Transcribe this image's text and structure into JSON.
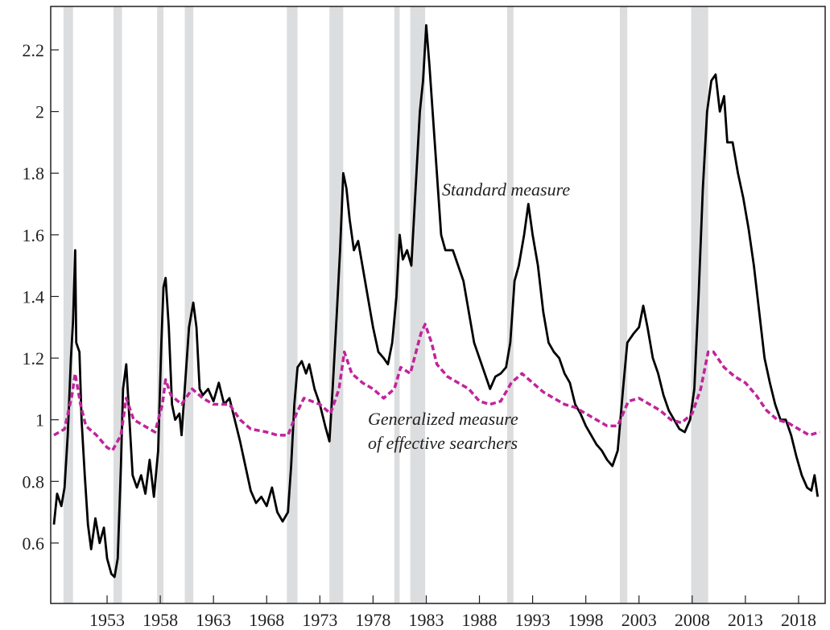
{
  "chart_data": {
    "type": "line",
    "annotations": [
      "Standard measure",
      "Generalized measure",
      "of effective searchers"
    ],
    "xlim": [
      1947.7,
      2020.5
    ],
    "xticks": [
      1953,
      1958,
      1963,
      1968,
      1973,
      1978,
      1983,
      1988,
      1993,
      1998,
      2003,
      2008,
      2013,
      2018
    ],
    "ylim": [
      0.404,
      2.341
    ],
    "yticks": [
      0.6,
      0.8,
      1,
      1.2,
      1.4,
      1.6,
      1.8,
      2,
      2.2
    ],
    "recessions": [
      [
        1948.9,
        1949.8
      ],
      [
        1953.6,
        1954.4
      ],
      [
        1957.7,
        1958.3
      ],
      [
        1960.3,
        1961.1
      ],
      [
        1969.9,
        1970.9
      ],
      [
        1973.9,
        1975.2
      ],
      [
        1980.0,
        1980.5
      ],
      [
        1981.5,
        1982.9
      ],
      [
        1990.6,
        1991.2
      ],
      [
        2001.2,
        2001.9
      ],
      [
        2007.9,
        2009.5
      ]
    ],
    "recession_color": "#dcdddf",
    "series": [
      {
        "color": "#000000",
        "dash": false,
        "x": [
          1948.0,
          1948.3,
          1948.7,
          1949.0,
          1949.3,
          1949.6,
          1949.8,
          1950.0,
          1950.1,
          1950.4,
          1950.6,
          1950.9,
          1951.2,
          1951.5,
          1951.9,
          1952.3,
          1952.7,
          1953.0,
          1953.4,
          1953.7,
          1954.0,
          1954.3,
          1954.5,
          1954.8,
          1955.1,
          1955.4,
          1955.8,
          1956.2,
          1956.6,
          1957.0,
          1957.4,
          1957.8,
          1958.1,
          1958.3,
          1958.5,
          1958.8,
          1959.1,
          1959.4,
          1959.8,
          1960.0,
          1960.3,
          1960.7,
          1961.1,
          1961.4,
          1961.7,
          1962.0,
          1962.5,
          1963.0,
          1963.5,
          1964.0,
          1964.5,
          1965.0,
          1965.5,
          1966.0,
          1966.5,
          1967.0,
          1967.5,
          1968.0,
          1968.5,
          1969.0,
          1969.5,
          1970.0,
          1970.3,
          1970.6,
          1970.9,
          1971.3,
          1971.7,
          1972.0,
          1972.5,
          1973.0,
          1973.5,
          1973.9,
          1974.2,
          1974.6,
          1974.9,
          1975.2,
          1975.5,
          1975.8,
          1976.2,
          1976.6,
          1977.0,
          1977.5,
          1978.0,
          1978.5,
          1979.0,
          1979.4,
          1979.8,
          1980.2,
          1980.5,
          1980.8,
          1981.2,
          1981.6,
          1982.0,
          1982.4,
          1982.7,
          1983.0,
          1983.3,
          1983.6,
          1984.0,
          1984.4,
          1984.8,
          1985.5,
          1986.0,
          1986.5,
          1987.0,
          1987.5,
          1988.0,
          1988.5,
          1989.0,
          1989.5,
          1990.0,
          1990.5,
          1990.9,
          1991.3,
          1991.7,
          1992.2,
          1992.6,
          1993.0,
          1993.5,
          1994.0,
          1994.5,
          1995.0,
          1995.5,
          1996.0,
          1996.5,
          1997.0,
          1997.5,
          1998.0,
          1998.5,
          1999.0,
          1999.5,
          2000.0,
          2000.5,
          2001.0,
          2001.5,
          2001.9,
          2002.5,
          2003.0,
          2003.4,
          2003.8,
          2004.3,
          2004.8,
          2005.3,
          2005.8,
          2006.3,
          2006.8,
          2007.3,
          2007.8,
          2008.2,
          2008.6,
          2009.0,
          2009.4,
          2009.8,
          2010.2,
          2010.6,
          2011.0,
          2011.3,
          2011.8,
          2012.3,
          2012.8,
          2013.3,
          2013.8,
          2014.3,
          2014.8,
          2015.3,
          2015.8,
          2016.3,
          2016.8,
          2017.3,
          2017.8,
          2018.3,
          2018.8,
          2019.2,
          2019.5,
          2019.8
        ],
        "values": [
          0.66,
          0.76,
          0.72,
          0.78,
          0.95,
          1.2,
          1.32,
          1.55,
          1.25,
          1.22,
          1.0,
          0.82,
          0.66,
          0.58,
          0.68,
          0.6,
          0.65,
          0.55,
          0.5,
          0.49,
          0.55,
          0.85,
          1.1,
          1.18,
          1.0,
          0.82,
          0.78,
          0.82,
          0.76,
          0.87,
          0.75,
          0.9,
          1.25,
          1.43,
          1.46,
          1.3,
          1.05,
          1.0,
          1.02,
          0.95,
          1.1,
          1.3,
          1.38,
          1.3,
          1.1,
          1.08,
          1.1,
          1.06,
          1.12,
          1.05,
          1.07,
          1.0,
          0.93,
          0.85,
          0.77,
          0.73,
          0.75,
          0.72,
          0.78,
          0.7,
          0.67,
          0.7,
          0.85,
          1.05,
          1.17,
          1.19,
          1.15,
          1.18,
          1.1,
          1.05,
          0.98,
          0.93,
          1.1,
          1.35,
          1.55,
          1.8,
          1.75,
          1.65,
          1.55,
          1.58,
          1.5,
          1.4,
          1.3,
          1.22,
          1.2,
          1.18,
          1.25,
          1.4,
          1.6,
          1.52,
          1.55,
          1.5,
          1.75,
          2.0,
          2.1,
          2.28,
          2.15,
          2.0,
          1.8,
          1.6,
          1.55,
          1.55,
          1.5,
          1.45,
          1.35,
          1.25,
          1.2,
          1.15,
          1.1,
          1.14,
          1.15,
          1.17,
          1.25,
          1.45,
          1.5,
          1.6,
          1.7,
          1.6,
          1.5,
          1.35,
          1.25,
          1.22,
          1.2,
          1.15,
          1.12,
          1.05,
          1.02,
          0.98,
          0.95,
          0.92,
          0.9,
          0.87,
          0.85,
          0.9,
          1.1,
          1.25,
          1.28,
          1.3,
          1.37,
          1.3,
          1.2,
          1.15,
          1.08,
          1.03,
          1.0,
          0.97,
          0.96,
          1.0,
          1.1,
          1.4,
          1.75,
          2.0,
          2.1,
          2.12,
          2.0,
          2.05,
          1.9,
          1.9,
          1.8,
          1.72,
          1.62,
          1.5,
          1.35,
          1.2,
          1.12,
          1.05,
          1.0,
          1.0,
          0.95,
          0.88,
          0.82,
          0.78,
          0.77,
          0.82,
          0.75
        ]
      },
      {
        "color": "#c0249a",
        "dash": true,
        "x": [
          1948.0,
          1949.0,
          1949.7,
          1950.0,
          1950.5,
          1951.0,
          1952.0,
          1953.0,
          1953.5,
          1954.3,
          1954.8,
          1955.5,
          1956.5,
          1957.5,
          1958.2,
          1958.5,
          1959.0,
          1960.0,
          1961.0,
          1962.0,
          1963.0,
          1964.5,
          1965.5,
          1966.5,
          1968.0,
          1969.0,
          1970.0,
          1970.8,
          1971.5,
          1973.0,
          1974.0,
          1974.8,
          1975.3,
          1976.0,
          1977.0,
          1978.0,
          1979.0,
          1980.0,
          1980.6,
          1981.5,
          1982.5,
          1982.9,
          1983.5,
          1984.0,
          1985.0,
          1986.0,
          1987.0,
          1988.0,
          1989.0,
          1990.0,
          1991.0,
          1992.0,
          1993.0,
          1994.0,
          1995.0,
          1996.0,
          1997.0,
          1998.0,
          1999.0,
          2000.0,
          2001.0,
          2002.0,
          2003.0,
          2004.0,
          2005.0,
          2006.0,
          2007.0,
          2008.0,
          2008.8,
          2009.5,
          2010.0,
          2011.0,
          2012.0,
          2013.0,
          2014.0,
          2015.0,
          2016.0,
          2017.0,
          2018.0,
          2019.0,
          2020.0
        ],
        "values": [
          0.95,
          0.97,
          1.08,
          1.15,
          1.05,
          0.98,
          0.95,
          0.91,
          0.9,
          0.95,
          1.07,
          1.0,
          0.98,
          0.96,
          1.05,
          1.13,
          1.08,
          1.05,
          1.1,
          1.07,
          1.05,
          1.05,
          1.0,
          0.97,
          0.96,
          0.95,
          0.95,
          1.02,
          1.07,
          1.05,
          1.02,
          1.1,
          1.22,
          1.15,
          1.12,
          1.1,
          1.07,
          1.1,
          1.17,
          1.15,
          1.28,
          1.31,
          1.25,
          1.18,
          1.14,
          1.12,
          1.1,
          1.06,
          1.05,
          1.06,
          1.12,
          1.15,
          1.12,
          1.09,
          1.07,
          1.05,
          1.04,
          1.02,
          1.0,
          0.98,
          0.98,
          1.06,
          1.07,
          1.05,
          1.03,
          1.0,
          0.99,
          1.02,
          1.1,
          1.22,
          1.22,
          1.17,
          1.14,
          1.12,
          1.08,
          1.03,
          1.0,
          0.99,
          0.97,
          0.95,
          0.96
        ]
      }
    ]
  }
}
